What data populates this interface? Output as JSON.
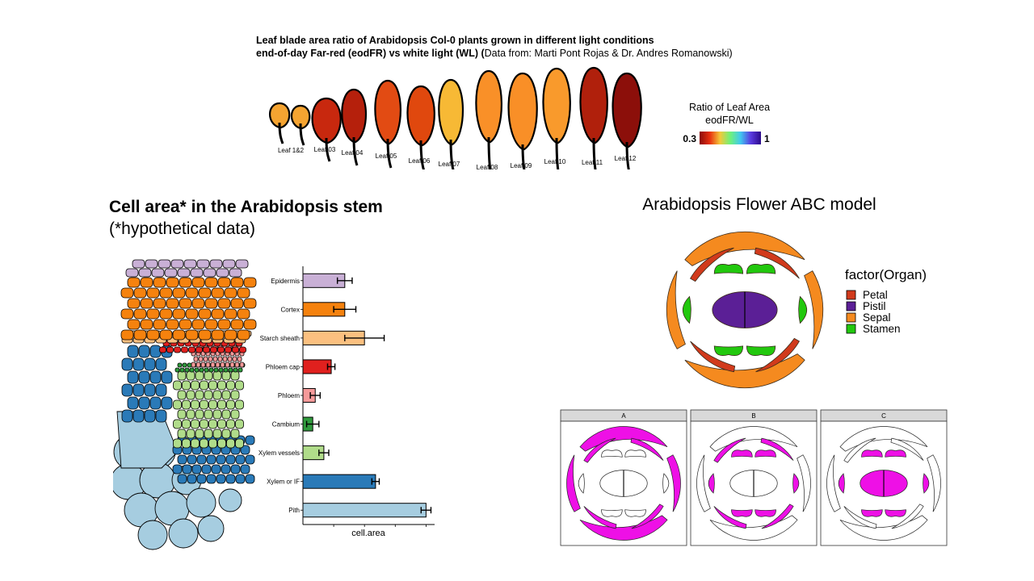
{
  "leaf_panel": {
    "title_line1": "Leaf blade area ratio of Arabidopsis Col-0 plants grown in different light conditions",
    "title_line2_bold": "end-of-day Far-red (eodFR) vs white light (WL) (",
    "title_line2_normal": "Data from: Marti Pont Rojas & Dr. Andres Romanowski)",
    "legend_title_line1": "Ratio of Leaf Area",
    "legend_title_line2": "eodFR/WL",
    "legend_min": "0.3",
    "legend_max": "1",
    "gradient_colors": [
      "#8b0a0a",
      "#e8300f",
      "#f4c83a",
      "#6ef27a",
      "#40c8f0",
      "#5a3ae0",
      "#2c0a8a"
    ],
    "leaves": [
      {
        "label": "Leaf 1&2",
        "color": "#f5a431"
      },
      {
        "label": "Leaf 03",
        "color": "#c8280e"
      },
      {
        "label": "Leaf 04",
        "color": "#b5200c"
      },
      {
        "label": "Leaf 05",
        "color": "#e24b13"
      },
      {
        "label": "Leaf 06",
        "color": "#e0480e"
      },
      {
        "label": "Leaf 07",
        "color": "#f7b935"
      },
      {
        "label": "Leaf 08",
        "color": "#f99028"
      },
      {
        "label": "Leaf 09",
        "color": "#f98f27"
      },
      {
        "label": "Leaf 10",
        "color": "#f99a2c"
      },
      {
        "label": "Leaf 11",
        "color": "#b0200c"
      },
      {
        "label": "Leaf 12",
        "color": "#8c0f0a"
      }
    ]
  },
  "stem_panel": {
    "title_bold": "Cell area* in the Arabidopsis stem",
    "subtitle": "(*hypothetical data)"
  },
  "abc_panel": {
    "title": "Arabidopsis Flower ABC model",
    "legend_title": "factor(Organ)",
    "legend_items": [
      {
        "label": "Petal",
        "color": "#d13a1c"
      },
      {
        "label": "Pistil",
        "color": "#5b1f96"
      },
      {
        "label": "Sepal",
        "color": "#f58a1f"
      },
      {
        "label": "Stamen",
        "color": "#22c80e"
      }
    ],
    "facets": [
      "A",
      "B",
      "C"
    ],
    "highlight_color": "#ee10e6"
  },
  "chart_data": [
    {
      "type": "bar",
      "orientation": "horizontal",
      "categories": [
        "Epidermis",
        "Cortex",
        "Starch sheath",
        "Phloem cap",
        "Phloem",
        "Cambium",
        "Xylem vessels",
        "Xylem or IF",
        "Pith"
      ],
      "values": [
        0.34,
        0.34,
        0.5,
        0.23,
        0.1,
        0.08,
        0.17,
        0.59,
        1.0
      ],
      "errors": [
        0.06,
        0.09,
        0.16,
        0.03,
        0.04,
        0.05,
        0.04,
        0.03,
        0.04
      ],
      "colors": [
        "#c9b0d6",
        "#f5820e",
        "#fbc080",
        "#e0201e",
        "#f59a9a",
        "#2f9a3c",
        "#b0dc8a",
        "#2a7ab8",
        "#a6cde0"
      ],
      "xlabel": "cell.area",
      "ylabel": "",
      "xlim": [
        0,
        1.05
      ]
    }
  ]
}
